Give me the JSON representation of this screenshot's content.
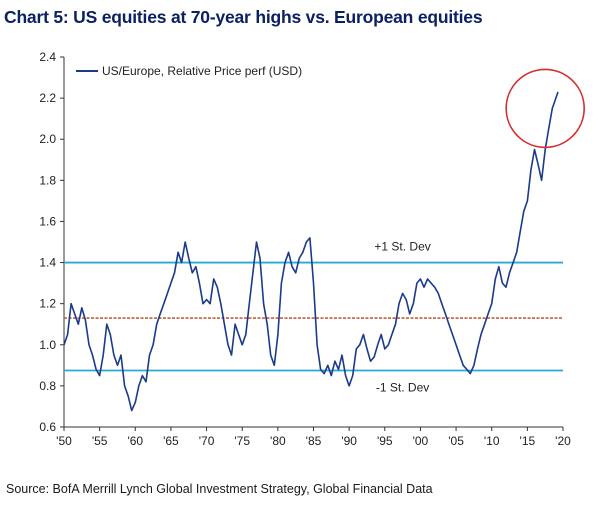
{
  "title": "Chart 5: US equities at 70-year highs vs. European equities",
  "source": "Source: BofA Merrill Lynch Global Investment Strategy, Global Financial Data",
  "chart_data": {
    "type": "line",
    "title": "Chart 5: US equities at 70-year highs vs. European equities",
    "xlabel": "",
    "ylabel": "",
    "xlim": [
      1950,
      2020
    ],
    "ylim": [
      0.6,
      2.4
    ],
    "x_ticks": [
      1950,
      1955,
      1960,
      1965,
      1970,
      1975,
      1980,
      1985,
      1990,
      1995,
      2000,
      2005,
      2010,
      2015,
      2020
    ],
    "x_tick_labels": [
      "'50",
      "'55",
      "'60",
      "'65",
      "'70",
      "'75",
      "'80",
      "'85",
      "'90",
      "'95",
      "'00",
      "'05",
      "'10",
      "'15",
      "'20"
    ],
    "y_ticks": [
      0.6,
      0.8,
      1.0,
      1.2,
      1.4,
      1.6,
      1.8,
      2.0,
      2.2,
      2.4
    ],
    "y_tick_labels": [
      "0.6",
      "0.8",
      "1.0",
      "1.2",
      "1.4",
      "1.6",
      "1.8",
      "2.0",
      "2.2",
      "2.4"
    ],
    "grid": false,
    "legend": {
      "placement": "top-left",
      "entries": [
        "US/Europe, Relative Price perf (USD)"
      ]
    },
    "series": [
      {
        "name": "US/Europe, Relative Price perf (USD)",
        "color": "#1a3a8c",
        "x": [
          1950,
          1950.5,
          1951,
          1951.5,
          1952,
          1952.5,
          1953,
          1953.5,
          1954,
          1954.5,
          1955,
          1955.5,
          1956,
          1956.5,
          1957,
          1957.5,
          1958,
          1958.5,
          1959,
          1959.5,
          1960,
          1960.5,
          1961,
          1961.5,
          1962,
          1962.5,
          1963,
          1963.5,
          1964,
          1964.5,
          1965,
          1965.5,
          1966,
          1966.5,
          1967,
          1967.5,
          1968,
          1968.5,
          1969,
          1969.5,
          1970,
          1970.5,
          1971,
          1971.5,
          1972,
          1972.5,
          1973,
          1973.5,
          1974,
          1974.5,
          1975,
          1975.5,
          1976,
          1976.5,
          1977,
          1977.5,
          1978,
          1978.5,
          1979,
          1979.5,
          1980,
          1980.5,
          1981,
          1981.5,
          1982,
          1982.5,
          1983,
          1983.5,
          1984,
          1984.5,
          1985,
          1985.5,
          1986,
          1986.5,
          1987,
          1987.5,
          1988,
          1988.5,
          1989,
          1989.5,
          1990,
          1990.5,
          1991,
          1991.5,
          1992,
          1992.5,
          1993,
          1993.5,
          1994,
          1994.5,
          1995,
          1995.5,
          1996,
          1996.5,
          1997,
          1997.5,
          1998,
          1998.5,
          1999,
          1999.5,
          2000,
          2000.5,
          2001,
          2001.5,
          2002,
          2002.5,
          2003,
          2003.5,
          2004,
          2004.5,
          2005,
          2005.5,
          2006,
          2006.5,
          2007,
          2007.5,
          2008,
          2008.5,
          2009,
          2009.5,
          2010,
          2010.5,
          2011,
          2011.5,
          2012,
          2012.5,
          2013,
          2013.5,
          2014,
          2014.5,
          2015,
          2015.5,
          2016,
          2016.5,
          2017,
          2017.5,
          2018,
          2018.5,
          2019,
          2019.3
        ],
        "values": [
          1.0,
          1.05,
          1.2,
          1.15,
          1.1,
          1.18,
          1.12,
          1.0,
          0.95,
          0.88,
          0.85,
          0.95,
          1.1,
          1.05,
          0.95,
          0.9,
          0.95,
          0.8,
          0.75,
          0.68,
          0.72,
          0.8,
          0.85,
          0.82,
          0.95,
          1.0,
          1.1,
          1.15,
          1.2,
          1.25,
          1.3,
          1.35,
          1.45,
          1.4,
          1.5,
          1.42,
          1.35,
          1.38,
          1.3,
          1.2,
          1.22,
          1.2,
          1.32,
          1.28,
          1.2,
          1.1,
          1.0,
          0.95,
          1.1,
          1.05,
          1.0,
          1.05,
          1.2,
          1.35,
          1.5,
          1.42,
          1.2,
          1.1,
          0.95,
          0.9,
          1.05,
          1.3,
          1.4,
          1.45,
          1.38,
          1.35,
          1.42,
          1.45,
          1.5,
          1.52,
          1.3,
          1.0,
          0.88,
          0.86,
          0.9,
          0.85,
          0.92,
          0.88,
          0.95,
          0.85,
          0.8,
          0.85,
          0.98,
          1.0,
          1.05,
          0.98,
          0.92,
          0.94,
          1.0,
          1.05,
          0.98,
          1.0,
          1.05,
          1.1,
          1.2,
          1.25,
          1.22,
          1.15,
          1.2,
          1.3,
          1.32,
          1.28,
          1.32,
          1.3,
          1.28,
          1.25,
          1.2,
          1.15,
          1.1,
          1.05,
          1.0,
          0.95,
          0.9,
          0.88,
          0.86,
          0.9,
          0.98,
          1.05,
          1.1,
          1.15,
          1.2,
          1.32,
          1.38,
          1.3,
          1.28,
          1.35,
          1.4,
          1.45,
          1.55,
          1.65,
          1.7,
          1.85,
          1.95,
          1.88,
          1.8,
          1.95,
          2.05,
          2.15,
          2.2,
          2.23
        ]
      }
    ],
    "reference_lines": [
      {
        "label": "+1 St. Dev",
        "value": 1.4,
        "color": "#2aa8d6",
        "style": "solid"
      },
      {
        "label": "",
        "value": 1.13,
        "color": "#c0603a",
        "style": "dashed"
      },
      {
        "label": "-1 St. Dev",
        "value": 0.875,
        "color": "#2aa8d6",
        "style": "solid"
      }
    ],
    "highlight": {
      "shape": "circle",
      "color": "#d32f2f",
      "center": [
        2017.5,
        2.15
      ]
    }
  }
}
